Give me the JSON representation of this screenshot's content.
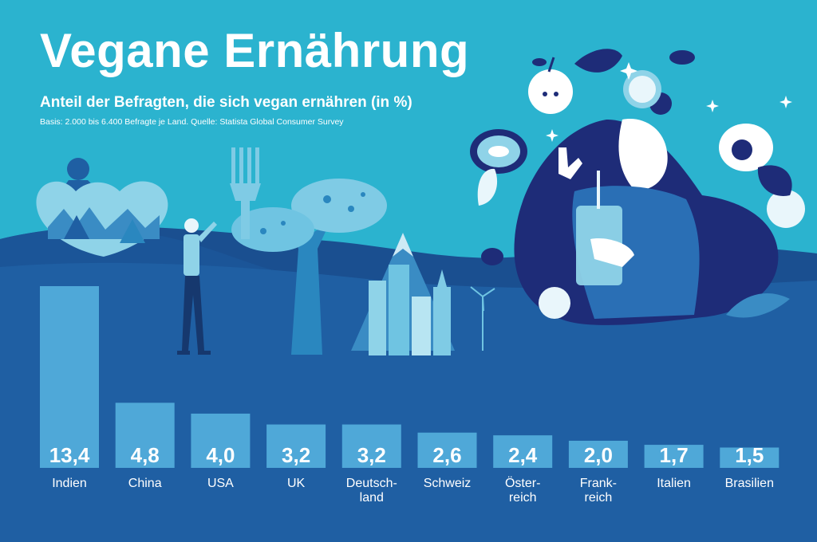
{
  "header": {
    "title": "Vegane Ernährung",
    "subtitle": "Anteil der Befragten, die sich vegan ernähren (in %)",
    "source": "Basis: 2.000 bis 6.400 Befragte je Land. Quelle: Statista Global Consumer Survey"
  },
  "colors": {
    "sky": "#2bb3cf",
    "ground": "#1f5fa3",
    "hills_dark": "#1a4f90",
    "bar": "#4fa8d8",
    "text": "#ffffff"
  },
  "chart_data": {
    "type": "bar",
    "title": "Vegane Ernährung",
    "subtitle": "Anteil der Befragten, die sich vegan ernähren (in %)",
    "xlabel": "",
    "ylabel": "",
    "ylim": [
      0,
      13.4
    ],
    "categories": [
      "Indien",
      "China",
      "USA",
      "UK",
      "Deutsch-\nland",
      "Schweiz",
      "Öster-\nreich",
      "Frank-\nreich",
      "Italien",
      "Brasilien"
    ],
    "values": [
      13.4,
      4.8,
      4.0,
      3.2,
      3.2,
      2.6,
      2.4,
      2.0,
      1.7,
      1.5
    ],
    "value_labels": [
      "13,4",
      "4,8",
      "4,0",
      "3,2",
      "3,2",
      "2,6",
      "2,4",
      "2,0",
      "1,7",
      "1,5"
    ],
    "grid": false,
    "legend": "none"
  }
}
